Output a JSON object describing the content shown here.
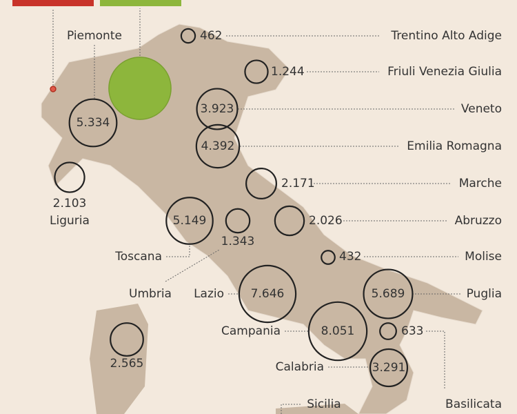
{
  "regions": [
    {
      "name": "Trentino Alto Adige",
      "value": 462,
      "label": "462"
    },
    {
      "name": "Friuli Venezia Giulia",
      "value": 1244,
      "label": "1.244"
    },
    {
      "name": "Veneto",
      "value": 3923,
      "label": "3.923"
    },
    {
      "name": "Emilia Romagna",
      "value": 4392,
      "label": "4.392"
    },
    {
      "name": "Marche",
      "value": 2171,
      "label": "2.171"
    },
    {
      "name": "Abruzzo",
      "value": 2026,
      "label": "2.026"
    },
    {
      "name": "Molise",
      "value": 432,
      "label": "432"
    },
    {
      "name": "Puglia",
      "value": 5689,
      "label": "5.689"
    },
    {
      "name": "Basilicata",
      "value": 633,
      "label": "633"
    },
    {
      "name": "Calabria",
      "value": 3291,
      "label": "3.291"
    },
    {
      "name": "Campania",
      "value": 8051,
      "label": "8.051"
    },
    {
      "name": "Lazio",
      "value": 7646,
      "label": "7.646"
    },
    {
      "name": "Umbria",
      "value": 1343,
      "label": "1.343"
    },
    {
      "name": "Toscana",
      "value": 5149,
      "label": "5.149"
    },
    {
      "name": "Liguria",
      "value": 2103,
      "label": "2.103"
    },
    {
      "name": "Piemonte",
      "value": 5334,
      "label": "5.334"
    },
    {
      "value": 2565,
      "label": "2.565"
    },
    {
      "name": "Sicilia"
    }
  ],
  "highlighted": {
    "value": 9200,
    "color": "#8db63c"
  },
  "marked": {
    "value": 70,
    "color": "#e05a4a"
  }
}
